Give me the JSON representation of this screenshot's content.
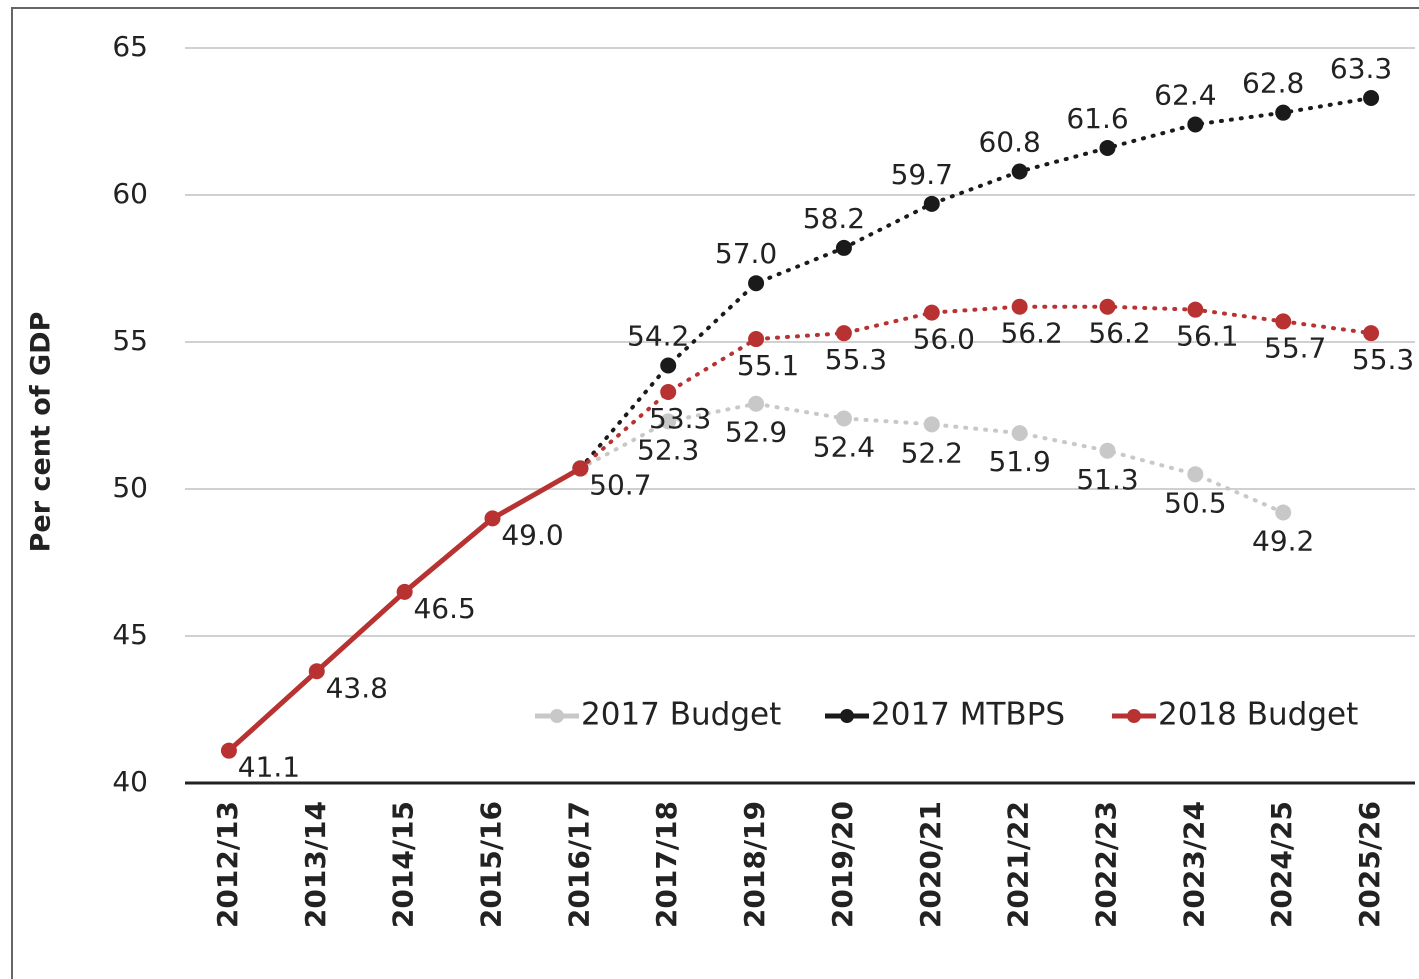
{
  "chart_data": {
    "type": "line",
    "y_label": "Per cent of GDP",
    "categories": [
      "2012/13",
      "2013/14",
      "2014/15",
      "2015/16",
      "2016/17",
      "2017/18",
      "2018/19",
      "2019/20",
      "2020/21",
      "2021/22",
      "2022/23",
      "2023/24",
      "2024/25",
      "2025/26"
    ],
    "series": [
      {
        "name": "2017 Budget",
        "color": "#c8c8c8",
        "values": [
          null,
          null,
          null,
          null,
          50.7,
          52.3,
          52.9,
          52.4,
          52.2,
          51.9,
          51.3,
          50.5,
          49.2,
          null
        ]
      },
      {
        "name": "2017 MTBPS",
        "color": "#1a1a1a",
        "values": [
          null,
          null,
          null,
          null,
          50.7,
          54.2,
          57.0,
          58.2,
          59.7,
          60.8,
          61.6,
          62.4,
          62.8,
          63.3
        ],
        "value_labels": [
          null,
          null,
          null,
          null,
          null,
          "54.2",
          "57.0",
          "58.2",
          "59.7",
          "60.8",
          "61.6",
          "62.4",
          "62.8",
          "63.3"
        ]
      },
      {
        "name": "2018 Budget",
        "color": "#b83232",
        "values": [
          41.1,
          43.8,
          46.5,
          49.0,
          50.7,
          53.3,
          55.1,
          55.3,
          56.0,
          56.2,
          56.2,
          56.1,
          55.7,
          55.3
        ],
        "value_labels": [
          "41.1",
          "43.8",
          "46.5",
          "49.0",
          "50.7",
          "53.3",
          "55.1",
          "55.3",
          "56.0",
          "56.2",
          "56.2",
          "56.1",
          "55.7",
          "55.3"
        ]
      }
    ],
    "value_labels_2017_budget": null,
    "ylim": [
      40,
      65
    ],
    "yticks": [
      40,
      45,
      50,
      55,
      60,
      65
    ],
    "grid": true,
    "legend": "bottom-right"
  }
}
